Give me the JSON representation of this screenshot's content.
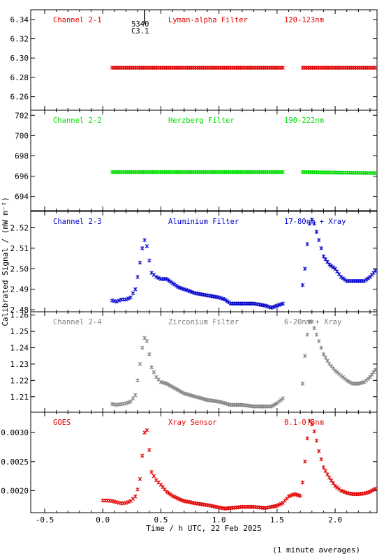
{
  "chart_data": {
    "type": "scatter",
    "xlabel": "Time / h UTC, 22 Feb 2025",
    "ylabel": "Calibrated Signal / (mW m⁻²)",
    "footnote": "(1 minute averages)",
    "xlim": [
      -0.62,
      2.36
    ],
    "xticks": [
      "-0.5",
      "0.0",
      "0.5",
      "1.0",
      "1.5",
      "2.0"
    ],
    "event_marker": {
      "x": 0.36,
      "labels": [
        "5340",
        "C3.1"
      ]
    },
    "panels": [
      {
        "name": "Channel 2-1",
        "filter": "Lyman-alpha Filter",
        "band": "120-123nm",
        "color": "#e00000",
        "ylim": [
          6.246,
          6.35
        ],
        "yticks": [
          "6.26",
          "6.28",
          "6.30",
          "6.32",
          "6.34"
        ],
        "segments": [
          {
            "x": [
              0.08,
              1.55
            ],
            "y": [
              6.29,
              6.29
            ]
          },
          {
            "x": [
              1.72,
              2.36
            ],
            "y": [
              6.29,
              6.29
            ]
          }
        ]
      },
      {
        "name": "Channel 2-2",
        "filter": "Herzberg Filter",
        "band": "190-222nm",
        "color": "#00dd00",
        "ylim": [
          692.6,
          702.5
        ],
        "yticks": [
          "694",
          "696",
          "698",
          "700",
          "702"
        ],
        "segments": [
          {
            "x": [
              0.08,
              1.55
            ],
            "y": [
              696.4,
              696.4
            ]
          },
          {
            "x": [
              1.72,
              2.36
            ],
            "y": [
              696.4,
              696.3
            ]
          }
        ]
      },
      {
        "name": "Channel 2-3",
        "filter": "Aluminium Filter",
        "band": "17-80nm + Xray",
        "color": "#0000cc",
        "ylim": [
          2.479,
          2.528
        ],
        "yticks": [
          "2.48",
          "2.49",
          "2.50",
          "2.51",
          "2.52"
        ],
        "segments": [
          {
            "x": [
              0.08,
              0.12,
              0.16,
              0.2,
              0.24,
              0.28,
              0.3,
              0.32,
              0.34,
              0.36,
              0.38,
              0.4,
              0.42,
              0.46,
              0.5,
              0.55,
              0.6,
              0.65,
              0.7,
              0.8,
              0.9,
              1.0,
              1.05,
              1.1,
              1.2,
              1.3,
              1.4,
              1.45,
              1.5,
              1.55
            ],
            "y": [
              2.4845,
              2.484,
              2.485,
              2.485,
              2.486,
              2.49,
              2.496,
              2.503,
              2.51,
              2.514,
              2.511,
              2.504,
              2.498,
              2.496,
              2.495,
              2.495,
              2.493,
              2.491,
              2.49,
              2.488,
              2.487,
              2.486,
              2.485,
              2.483,
              2.483,
              2.483,
              2.482,
              2.481,
              2.482,
              2.483
            ]
          },
          {
            "x": [
              1.72,
              1.74,
              1.76,
              1.78,
              1.8,
              1.82,
              1.84,
              1.86,
              1.88,
              1.9,
              1.95,
              2.0,
              2.05,
              2.1,
              2.15,
              2.2,
              2.25,
              2.3,
              2.36
            ],
            "y": [
              2.492,
              2.5,
              2.512,
              2.522,
              2.524,
              2.522,
              2.518,
              2.514,
              2.51,
              2.506,
              2.502,
              2.5,
              2.496,
              2.494,
              2.494,
              2.494,
              2.494,
              2.496,
              2.5
            ]
          }
        ]
      },
      {
        "name": "Channel 2-4",
        "filter": "Zirconium Filter",
        "band": "6-20nm + Xray",
        "color": "#808080",
        "ylim": [
          1.2005,
          1.262
        ],
        "yticks": [
          "1.21",
          "1.22",
          "1.23",
          "1.24",
          "1.25",
          "1.26"
        ],
        "segments": [
          {
            "x": [
              0.08,
              0.12,
              0.16,
              0.2,
              0.24,
              0.28,
              0.3,
              0.32,
              0.34,
              0.36,
              0.38,
              0.4,
              0.42,
              0.46,
              0.5,
              0.55,
              0.6,
              0.65,
              0.7,
              0.8,
              0.9,
              1.0,
              1.05,
              1.1,
              1.2,
              1.3,
              1.4,
              1.45,
              1.5,
              1.55
            ],
            "y": [
              1.2055,
              1.205,
              1.2055,
              1.206,
              1.207,
              1.211,
              1.22,
              1.23,
              1.24,
              1.246,
              1.244,
              1.236,
              1.228,
              1.222,
              1.219,
              1.218,
              1.216,
              1.214,
              1.212,
              1.21,
              1.208,
              1.207,
              1.206,
              1.205,
              1.205,
              1.204,
              1.204,
              1.204,
              1.206,
              1.209
            ]
          },
          {
            "x": [
              1.72,
              1.74,
              1.76,
              1.78,
              1.8,
              1.82,
              1.84,
              1.86,
              1.88,
              1.9,
              1.95,
              2.0,
              2.05,
              2.1,
              2.15,
              2.2,
              2.25,
              2.3,
              2.36
            ],
            "y": [
              1.218,
              1.235,
              1.248,
              1.256,
              1.256,
              1.252,
              1.248,
              1.244,
              1.24,
              1.236,
              1.23,
              1.226,
              1.223,
              1.22,
              1.218,
              1.218,
              1.219,
              1.222,
              1.228
            ]
          }
        ]
      },
      {
        "name": "GOES",
        "filter": "Xray Sensor",
        "band": "0.1-0.8nm",
        "color": "#e00000",
        "ylim": [
          0.00162,
          0.00335
        ],
        "yticks": [
          "0.0020",
          "0.0025",
          "0.0030"
        ],
        "segments": [
          {
            "x": [
              0.0,
              0.04,
              0.08,
              0.12,
              0.16,
              0.2,
              0.24,
              0.28,
              0.3,
              0.32,
              0.34,
              0.36,
              0.38,
              0.4,
              0.42,
              0.46,
              0.5,
              0.55,
              0.6,
              0.65,
              0.7,
              0.8,
              0.9,
              1.0,
              1.05,
              1.1,
              1.2,
              1.3,
              1.4,
              1.45,
              1.5,
              1.55,
              1.6,
              1.65,
              1.7
            ],
            "y": [
              0.00183,
              0.00183,
              0.00182,
              0.0018,
              0.00178,
              0.00179,
              0.00182,
              0.0019,
              0.00202,
              0.0022,
              0.0026,
              0.003,
              0.00304,
              0.0027,
              0.00232,
              0.00218,
              0.0021,
              0.00198,
              0.00191,
              0.00186,
              0.00182,
              0.00178,
              0.00175,
              0.00171,
              0.00169,
              0.0017,
              0.00172,
              0.00172,
              0.0017,
              0.00172,
              0.00174,
              0.00179,
              0.0019,
              0.00194,
              0.00191
            ]
          },
          {
            "x": [
              1.72,
              1.74,
              1.76,
              1.78,
              1.8,
              1.82,
              1.84,
              1.86,
              1.88,
              1.9,
              1.95,
              2.0,
              2.05,
              2.1,
              2.15,
              2.2,
              2.25,
              2.3,
              2.36
            ],
            "y": [
              0.00214,
              0.0025,
              0.0029,
              0.0032,
              0.00314,
              0.00302,
              0.00286,
              0.00268,
              0.00254,
              0.0024,
              0.00222,
              0.00208,
              0.002,
              0.00196,
              0.00194,
              0.00194,
              0.00195,
              0.00198,
              0.00205
            ]
          }
        ]
      }
    ]
  }
}
